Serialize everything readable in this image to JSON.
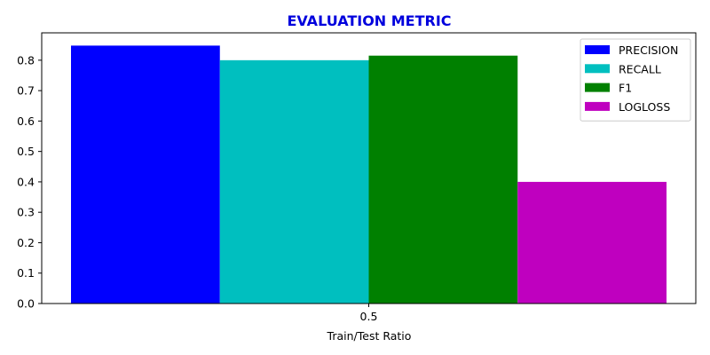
{
  "chart_data": {
    "type": "bar",
    "title": "EVALUATION METRIC",
    "title_color": "#0000dd",
    "xlabel": "Train/Test Ratio",
    "ylabel": "",
    "categories": [
      "0.5"
    ],
    "series": [
      {
        "name": "PRECISION",
        "color": "#0000ff",
        "values": [
          0.848
        ]
      },
      {
        "name": "RECALL",
        "color": "#00bfbf",
        "values": [
          0.8
        ]
      },
      {
        "name": "F1",
        "color": "#008000",
        "values": [
          0.815
        ]
      },
      {
        "name": "LOGLOSS",
        "color": "#bf00bf",
        "values": [
          0.4
        ]
      }
    ],
    "ylim": [
      0,
      0.89
    ],
    "yticks": [
      0.0,
      0.1,
      0.2,
      0.3,
      0.4,
      0.5,
      0.6,
      0.7,
      0.8
    ],
    "ytick_labels": [
      "0.0",
      "0.1",
      "0.2",
      "0.3",
      "0.4",
      "0.5",
      "0.6",
      "0.7",
      "0.8"
    ],
    "grid": false,
    "legend_position": "top-right"
  }
}
